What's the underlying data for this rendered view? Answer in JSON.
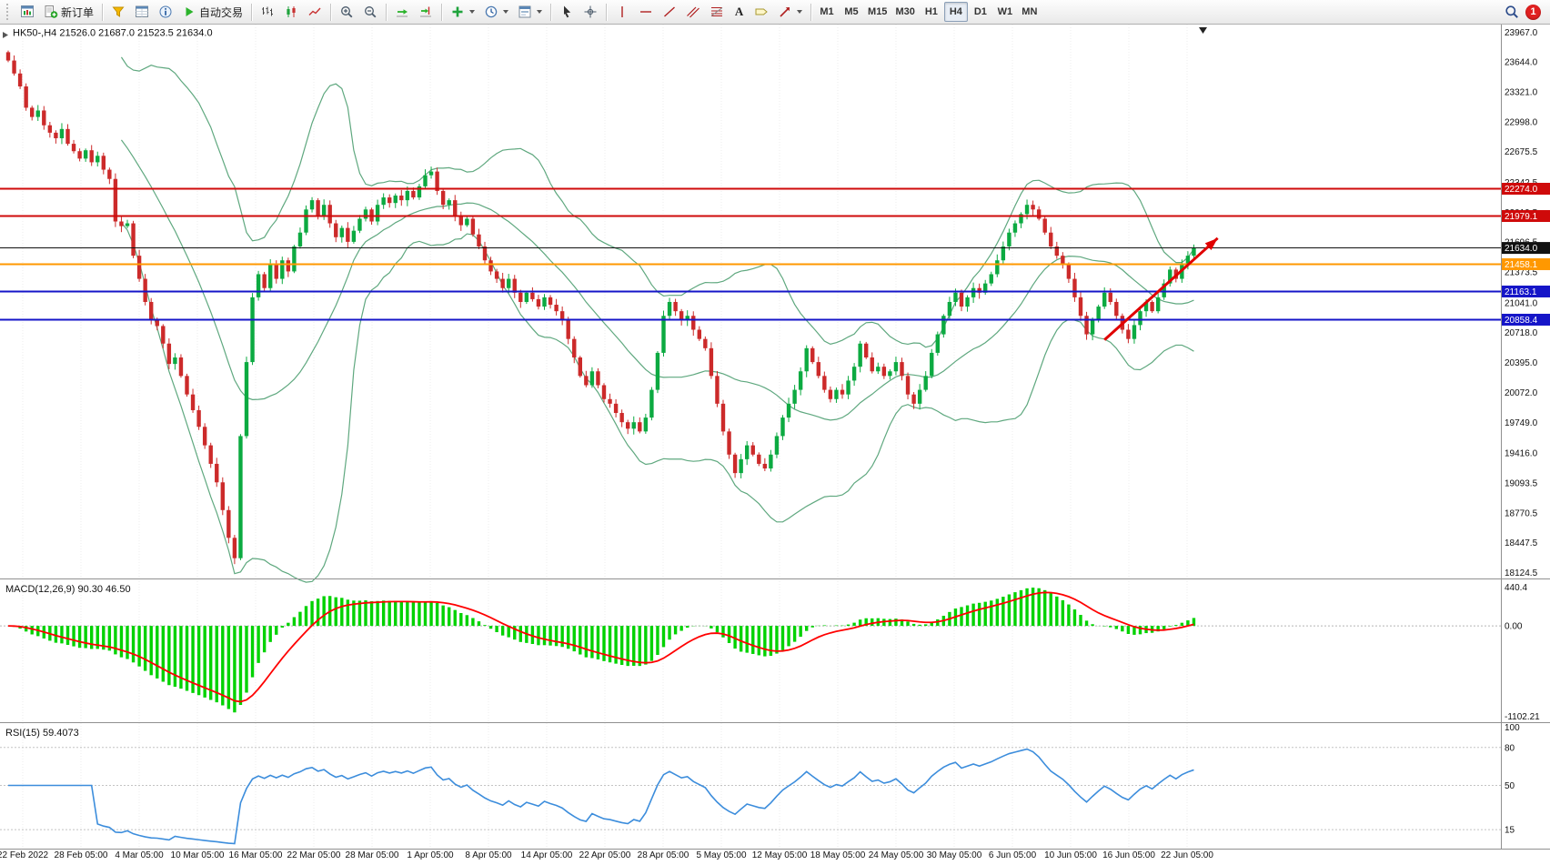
{
  "toolbar": {
    "new_order_label": "新订单",
    "autotrading_label": "自动交易",
    "text_tool_glyph": "A",
    "timeframes": [
      "M1",
      "M5",
      "M15",
      "M30",
      "H1",
      "H4",
      "D1",
      "W1",
      "MN"
    ],
    "active_timeframe": "H4",
    "notification_count": "1"
  },
  "chart": {
    "header": {
      "symbol_period": "HK50-,H4",
      "open": "21526.0",
      "high": "21687.0",
      "low": "21523.5",
      "close": "21634.0"
    },
    "price_axis_labels": [
      "23967.0",
      "23644.0",
      "23321.0",
      "22998.0",
      "22675.5",
      "22342.5",
      "22019.5",
      "21696.5",
      "21373.5",
      "21041.0",
      "20718.0",
      "20395.0",
      "20072.0",
      "19749.0",
      "19416.0",
      "19093.5",
      "18770.5",
      "18447.5",
      "18124.5"
    ],
    "levels": [
      {
        "label": "22274.0",
        "price": 22274.0,
        "color": "#cf0a0a",
        "width": 2
      },
      {
        "label": "21979.1",
        "price": 21979.1,
        "color": "#cf0a0a",
        "width": 2
      },
      {
        "label": "21634.0",
        "price": 21634.0,
        "color": "#111111",
        "width": 1
      },
      {
        "label": "21458.1",
        "price": 21458.1,
        "color": "#ff9800",
        "width": 2
      },
      {
        "label": "21163.1",
        "price": 21163.1,
        "color": "#1515c8",
        "width": 2
      },
      {
        "label": "20858.4",
        "price": 20858.4,
        "color": "#1515c8",
        "width": 2
      }
    ],
    "arrow": {
      "from_index": 184,
      "from_price": 20640,
      "to_index": 203,
      "to_price": 21740,
      "color": "#e00000"
    }
  },
  "macd_panel": {
    "label": "MACD(12,26,9)",
    "values": "90.30 46.50",
    "axis_labels": [
      "440.4",
      "0.00",
      "-1102.21"
    ]
  },
  "rsi_panel": {
    "label": "RSI(15)",
    "value": "59.4073",
    "axis_labels": [
      "100",
      "80",
      "50",
      "15"
    ],
    "levels": [
      80,
      50,
      15
    ]
  },
  "time_axis": [
    "22 Feb 2022",
    "28 Feb 05:00",
    "4 Mar 05:00",
    "10 Mar 05:00",
    "16 Mar 05:00",
    "22 Mar 05:00",
    "28 Mar 05:00",
    "1 Apr 05:00",
    "8 Apr 05:00",
    "14 Apr 05:00",
    "22 Apr 05:00",
    "28 Apr 05:00",
    "5 May 05:00",
    "12 May 05:00",
    "18 May 05:00",
    "24 May 05:00",
    "30 May 05:00",
    "6 Jun 05:00",
    "10 Jun 05:00",
    "16 Jun 05:00",
    "22 Jun 05:00"
  ],
  "chart_data": {
    "type": "candlestick",
    "symbol": "HK50",
    "timeframe": "H4",
    "visible_price_range": [
      18124.5,
      23967.0
    ],
    "current_ohlc": {
      "open": 21526.0,
      "high": 21687.0,
      "low": 21523.5,
      "close": 21634.0
    },
    "indicators": [
      {
        "name": "MACD",
        "params": [
          12,
          26,
          9
        ],
        "current_values": "90.30 46.50"
      },
      {
        "name": "RSI",
        "params": [
          15
        ],
        "current_value": "59.4073"
      }
    ],
    "horizontal_levels": [
      22274.0,
      21979.1,
      21634.0,
      21458.1,
      21163.1,
      20858.4
    ],
    "closes": [
      23660,
      23520,
      23380,
      23150,
      23050,
      23120,
      22960,
      22880,
      22820,
      22920,
      22760,
      22680,
      22600,
      22690,
      22560,
      22630,
      22480,
      22380,
      21920,
      21870,
      21900,
      21550,
      21300,
      21050,
      20850,
      20790,
      20600,
      20380,
      20450,
      20250,
      20050,
      19880,
      19700,
      19500,
      19300,
      19100,
      18800,
      18500,
      18280,
      19600,
      20400,
      21100,
      21350,
      21200,
      21450,
      21300,
      21500,
      21380,
      21650,
      21800,
      22050,
      22150,
      21980,
      22100,
      21900,
      21750,
      21850,
      21700,
      21820,
      21950,
      22050,
      21920,
      22100,
      22180,
      22120,
      22200,
      22150,
      22250,
      22180,
      22300,
      22420,
      22460,
      22250,
      22100,
      22150,
      21980,
      21880,
      21950,
      21780,
      21650,
      21500,
      21380,
      21300,
      21200,
      21300,
      21150,
      21050,
      21150,
      21080,
      21000,
      21100,
      21020,
      20950,
      20850,
      20650,
      20450,
      20250,
      20150,
      20300,
      20150,
      20000,
      19950,
      19850,
      19750,
      19680,
      19750,
      19650,
      19800,
      20100,
      20500,
      20900,
      21050,
      20950,
      20850,
      20900,
      20750,
      20650,
      20550,
      20250,
      19950,
      19650,
      19400,
      19200,
      19350,
      19500,
      19400,
      19300,
      19250,
      19400,
      19600,
      19800,
      19950,
      20100,
      20300,
      20550,
      20400,
      20250,
      20100,
      20000,
      20100,
      20050,
      20200,
      20350,
      20600,
      20450,
      20300,
      20350,
      20250,
      20300,
      20400,
      20250,
      20050,
      19950,
      20100,
      20250,
      20500,
      20700,
      20900,
      21050,
      21150,
      21000,
      21100,
      21200,
      21150,
      21250,
      21350,
      21500,
      21650,
      21800,
      21900,
      22000,
      22100,
      22050,
      21950,
      21800,
      21650,
      21550,
      21450,
      21300,
      21100,
      20900,
      20700,
      20850,
      21000,
      21150,
      21050,
      20900,
      20750,
      20650,
      20800,
      20950,
      21050,
      20950,
      21100,
      21250,
      21400,
      21300,
      21450,
      21550,
      21634
    ]
  },
  "colors": {
    "bull": "#0caa41",
    "bear": "#cc2a2a",
    "bollinger": "#5fa87f",
    "macd_hist": "#00d200",
    "macd_signal": "#ff0000",
    "rsi_line": "#3c8ddc"
  }
}
